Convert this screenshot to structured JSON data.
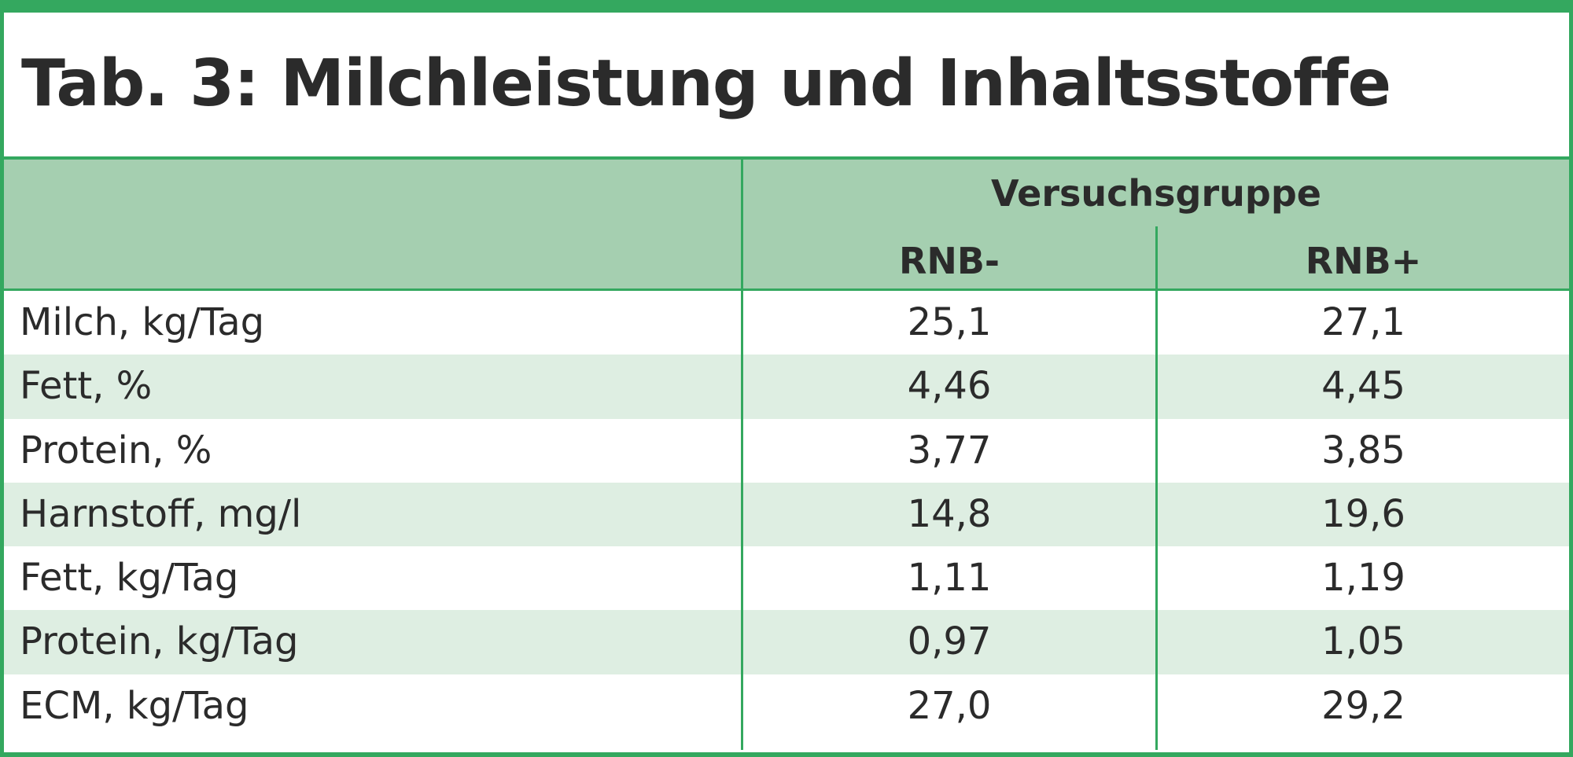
{
  "title": "Tab. 3: Milchleistung und Inhaltsstoffe",
  "header": {
    "group": "Versuchsgruppe",
    "columns": [
      "RNB-",
      "RNB+"
    ]
  },
  "rows": [
    {
      "label": "Milch, kg/Tag",
      "rnb_minus": "25,1",
      "rnb_plus": "27,1"
    },
    {
      "label": "Fett, %",
      "rnb_minus": "4,46",
      "rnb_plus": "4,45"
    },
    {
      "label": "Protein, %",
      "rnb_minus": "3,77",
      "rnb_plus": "3,85"
    },
    {
      "label": "Harnstoff, mg/l",
      "rnb_minus": "14,8",
      "rnb_plus": "19,6"
    },
    {
      "label": "Fett, kg/Tag",
      "rnb_minus": "1,11",
      "rnb_plus": "1,19"
    },
    {
      "label": "Protein, kg/Tag",
      "rnb_minus": "0,97",
      "rnb_plus": "1,05"
    },
    {
      "label": "ECM, kg/Tag",
      "rnb_minus": "27,0",
      "rnb_plus": "29,2"
    }
  ],
  "colors": {
    "frame": "#34a85f",
    "header_bg": "#a5cfb0",
    "stripe_bg": "#deeee2",
    "text": "#2b2b2b"
  }
}
